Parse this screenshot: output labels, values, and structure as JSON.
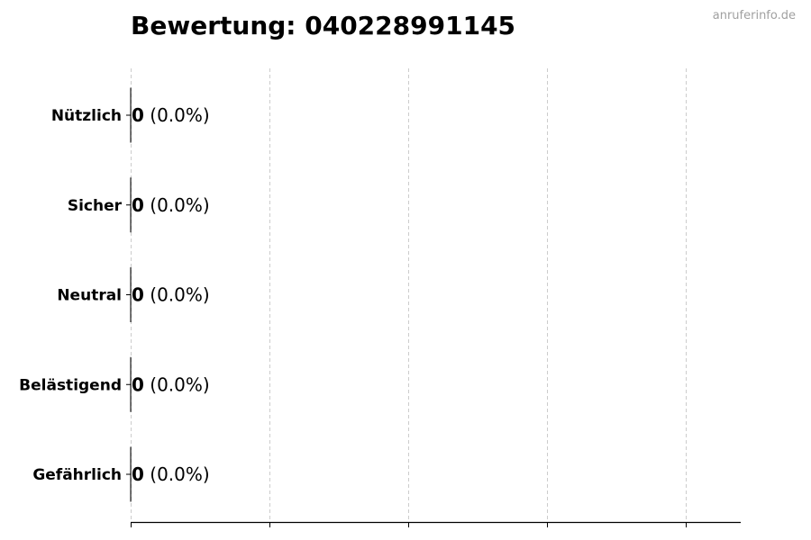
{
  "watermark": "anruferinfo.de",
  "chart_data": {
    "type": "bar",
    "orientation": "horizontal",
    "title": "Bewertung: 040228991145",
    "categories": [
      "Nützlich",
      "Sicher",
      "Neutral",
      "Belästigend",
      "Gefährlich"
    ],
    "values": [
      0,
      0,
      0,
      0,
      0
    ],
    "labels": [
      {
        "count": "0",
        "percent": "(0.0%)"
      },
      {
        "count": "0",
        "percent": "(0.0%)"
      },
      {
        "count": "0",
        "percent": "(0.0%)"
      },
      {
        "count": "0",
        "percent": "(0.0%)"
      },
      {
        "count": "0",
        "percent": "(0.0%)"
      }
    ],
    "xlabel": "",
    "ylabel": "",
    "grid": "x, dashed",
    "x_tick_labels": "none",
    "legend": "none",
    "colors": {
      "bar_edge": "#000000",
      "grid": "#cccccc",
      "watermark": "#a0a0a0"
    }
  }
}
